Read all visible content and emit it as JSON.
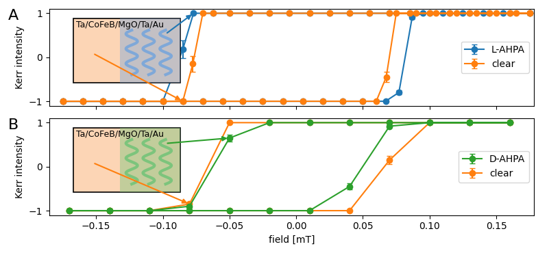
{
  "chart_data": [
    {
      "type": "line",
      "title": "A",
      "ylabel": "Kerr intensity",
      "annotations": [
        "Ta/CoFeB/MgO/Ta/Au"
      ],
      "xlim": [
        -0.185,
        0.178
      ],
      "ylim": [
        -1.1,
        1.1
      ],
      "xticks": [
        {
          "value": -0.15,
          "label": "−0.15"
        },
        {
          "value": -0.1,
          "label": "−0.10"
        },
        {
          "value": -0.05,
          "label": "−0.05"
        },
        {
          "value": 0.0,
          "label": "0.00"
        },
        {
          "value": 0.05,
          "label": "0.05"
        },
        {
          "value": 0.1,
          "label": "0.10"
        },
        {
          "value": 0.15,
          "label": "0.15"
        }
      ],
      "yticks": [
        {
          "value": -1,
          "label": "−1"
        },
        0,
        1
      ],
      "tick_labels": "y",
      "legend": "center right",
      "marker": "o",
      "line_style": "solid",
      "series": [
        {
          "name": "L-AHPA",
          "color": "#1f77b4",
          "x": [
            0.175,
            0.16,
            0.145,
            0.13,
            0.115,
            0.1,
            0.085,
            0.07,
            0.055,
            0.04,
            0.025,
            0.01,
            -0.005,
            -0.02,
            -0.035,
            -0.05,
            -0.0625,
            -0.077,
            -0.085,
            -0.1,
            -0.115,
            -0.13,
            -0.145,
            -0.16,
            -0.175,
            -0.175,
            -0.16,
            -0.145,
            -0.13,
            -0.115,
            -0.1,
            -0.085,
            -0.07,
            -0.055,
            -0.04,
            -0.025,
            -0.01,
            0.005,
            0.02,
            0.035,
            0.05,
            0.067,
            0.077,
            0.087,
            0.095,
            0.11,
            0.125,
            0.14,
            0.155,
            0.175
          ],
          "values": [
            1,
            1,
            1,
            1,
            1,
            1,
            1,
            1,
            1,
            1,
            1,
            1,
            1,
            1,
            1,
            1,
            1,
            1,
            0.18,
            -1,
            -1,
            -1,
            -1,
            -1,
            -1,
            -1,
            -1,
            -1,
            -1,
            -1,
            -1,
            -1,
            -1,
            -1,
            -1,
            -1,
            -1,
            -1,
            -1,
            -1,
            -1,
            -1,
            -0.8,
            0.92,
            1,
            1,
            1,
            1,
            1,
            1
          ],
          "errors": [
            0,
            0,
            0,
            0,
            0,
            0,
            0,
            0,
            0,
            0,
            0,
            0,
            0,
            0,
            0,
            0,
            0,
            0,
            0.2,
            0,
            0,
            0,
            0,
            0,
            0,
            0,
            0,
            0,
            0,
            0,
            0,
            0,
            0,
            0,
            0,
            0,
            0,
            0,
            0,
            0,
            0,
            0,
            0.05,
            0.05,
            0,
            0,
            0,
            0,
            0,
            0
          ]
        },
        {
          "name": "clear",
          "color": "#ff7f0e",
          "x": [
            0.175,
            0.16,
            0.145,
            0.13,
            0.115,
            0.1,
            0.085,
            0.07,
            0.055,
            0.04,
            0.025,
            0.01,
            -0.005,
            -0.02,
            -0.035,
            -0.05,
            -0.0625,
            -0.07,
            -0.0775,
            -0.085,
            -0.1,
            -0.115,
            -0.13,
            -0.145,
            -0.16,
            -0.175,
            -0.175,
            -0.16,
            -0.145,
            -0.13,
            -0.115,
            -0.1,
            -0.085,
            -0.07,
            -0.055,
            -0.04,
            -0.025,
            -0.01,
            0.005,
            0.02,
            0.035,
            0.05,
            0.06,
            0.0675,
            0.075,
            0.09,
            0.105,
            0.12,
            0.135,
            0.15,
            0.165,
            0.175
          ],
          "values": [
            1,
            1,
            1,
            1,
            1,
            1,
            1,
            1,
            1,
            1,
            1,
            1,
            1,
            1,
            1,
            1,
            1,
            1,
            -0.15,
            -1,
            -1,
            -1,
            -1,
            -1,
            -1,
            -1,
            -1,
            -1,
            -1,
            -1,
            -1,
            -1,
            -1,
            -1,
            -1,
            -1,
            -1,
            -1,
            -1,
            -1,
            -1,
            -1,
            -1,
            -0.45,
            1,
            1,
            1,
            1,
            1,
            1,
            1,
            1
          ],
          "errors": [
            0,
            0,
            0,
            0,
            0,
            0,
            0,
            0,
            0,
            0,
            0,
            0,
            0,
            0,
            0,
            0,
            0,
            0,
            0.18,
            0,
            0,
            0,
            0,
            0,
            0,
            0,
            0,
            0,
            0,
            0,
            0,
            0,
            0,
            0,
            0,
            0,
            0,
            0,
            0,
            0,
            0,
            0,
            0,
            0.12,
            0,
            0,
            0,
            0,
            0,
            0,
            0,
            0
          ]
        }
      ]
    },
    {
      "type": "line",
      "title": "B",
      "xlabel": "field [mT]",
      "ylabel": "Kerr intensity",
      "annotations": [
        "Ta/CoFeB/MgO/Ta/Au"
      ],
      "xlim": [
        -0.185,
        0.178
      ],
      "ylim": [
        -1.1,
        1.1
      ],
      "xticks": [
        {
          "value": -0.15,
          "label": "−0.15"
        },
        {
          "value": -0.1,
          "label": "−0.10"
        },
        {
          "value": -0.05,
          "label": "−0.05"
        },
        {
          "value": 0.0,
          "label": "0.00"
        },
        {
          "value": 0.05,
          "label": "0.05"
        },
        {
          "value": 0.1,
          "label": "0.10"
        },
        {
          "value": 0.15,
          "label": "0.15"
        }
      ],
      "yticks": [
        {
          "value": -1,
          "label": "−1"
        },
        0,
        1
      ],
      "legend": "center right",
      "marker": "o",
      "line_style": "solid",
      "series": [
        {
          "name": "D-AHPA",
          "color": "#2ca02c",
          "x": [
            0.16,
            0.13,
            0.1,
            0.07,
            0.04,
            0.01,
            -0.02,
            -0.05,
            -0.08,
            -0.11,
            -0.14,
            -0.17,
            -0.17,
            -0.14,
            -0.11,
            -0.08,
            -0.05,
            -0.02,
            0.01,
            0.04,
            0.07,
            0.1,
            0.13,
            0.16
          ],
          "values": [
            1,
            1,
            1,
            1,
            1,
            1,
            1,
            0.65,
            -0.9,
            -1,
            -1,
            -1,
            -1,
            -1,
            -1,
            -1,
            -1,
            -1,
            -1,
            -0.45,
            0.92,
            1,
            1,
            1
          ],
          "errors": [
            0,
            0,
            0,
            0,
            0,
            0,
            0,
            0.08,
            0.03,
            0,
            0,
            0,
            0,
            0,
            0,
            0,
            0,
            0,
            0,
            0.07,
            0.03,
            0,
            0,
            0
          ]
        },
        {
          "name": "clear",
          "color": "#ff7f0e",
          "x": [
            0.16,
            0.13,
            0.1,
            0.07,
            0.04,
            0.01,
            -0.02,
            -0.05,
            -0.08,
            -0.11,
            -0.14,
            -0.17,
            -0.17,
            -0.14,
            -0.11,
            -0.08,
            -0.05,
            -0.02,
            0.01,
            0.04,
            0.07,
            0.1,
            0.13,
            0.16
          ],
          "values": [
            1,
            1,
            1,
            1,
            1,
            1,
            1,
            1,
            -0.85,
            -1,
            -1,
            -1,
            -1,
            -1,
            -1,
            -1,
            -1,
            -1,
            -1,
            -1,
            0.15,
            1,
            1,
            1
          ],
          "errors": [
            0,
            0,
            0,
            0,
            0,
            0,
            0,
            0,
            0.04,
            0,
            0,
            0,
            0,
            0,
            0,
            0,
            0,
            0,
            0,
            0,
            0.1,
            0,
            0,
            0
          ]
        }
      ]
    }
  ]
}
